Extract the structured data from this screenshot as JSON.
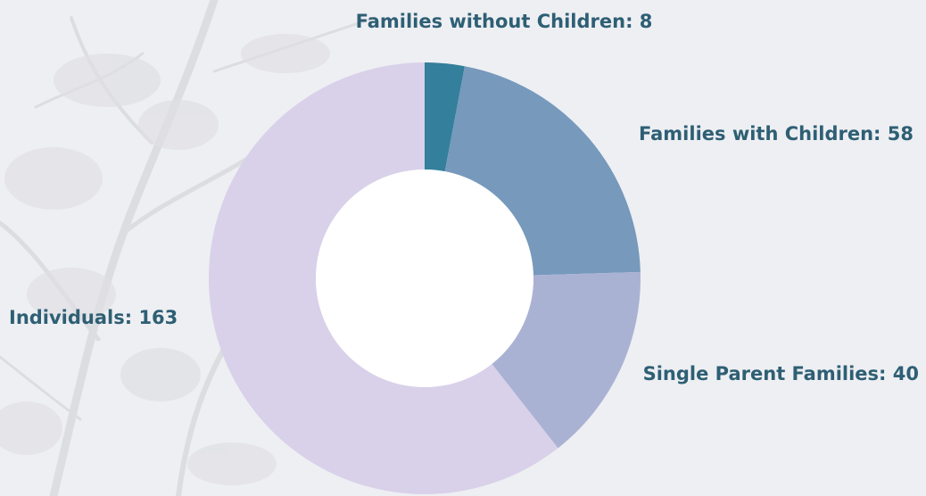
{
  "chart_data": {
    "type": "donut",
    "title": "",
    "slices": [
      {
        "name": "Families without Children",
        "value": 8,
        "label": "Families without Children: 8",
        "color": "#347f9c"
      },
      {
        "name": "Families with Children",
        "value": 58,
        "label": "Families with Children: 58",
        "color": "#7699bc"
      },
      {
        "name": "Single Parent Families",
        "value": 40,
        "label": "Single Parent Families: 40",
        "color": "#aab2d4"
      },
      {
        "name": "Individuals",
        "value": 163,
        "label": "Individuals: 163",
        "color": "#d9d1e9"
      }
    ],
    "label_color": "#2e5f74",
    "background_color": "#eeeff3",
    "legend": "none"
  }
}
